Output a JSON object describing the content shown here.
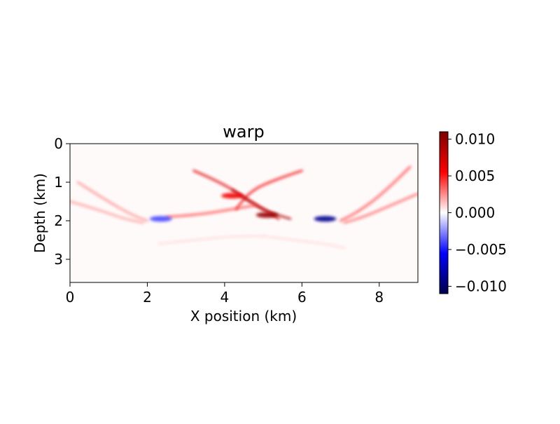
{
  "chart_data": {
    "type": "heatmap",
    "title": "warp",
    "xlabel": "X position (km)",
    "ylabel": "Depth (km)",
    "xlim": [
      0,
      9
    ],
    "ylim": [
      0,
      3.6
    ],
    "y_inverted": true,
    "x_ticks": [
      0,
      2,
      4,
      6,
      8
    ],
    "x_tick_labels": [
      "0",
      "2",
      "4",
      "6",
      "8"
    ],
    "y_ticks": [
      0,
      1,
      2,
      3
    ],
    "y_tick_labels": [
      "0",
      "1",
      "2",
      "3"
    ],
    "colormap": "seismic",
    "colormap_stops": [
      "#00004c",
      "#0000ff",
      "#ffffff",
      "#ff0000",
      "#7f0000"
    ],
    "value_range": [
      -0.011,
      0.011
    ],
    "colorbar_ticks": [
      0.01,
      0.005,
      0,
      -0.005,
      -0.01
    ],
    "colorbar_tick_labels": [
      "0.010",
      "0.005",
      "0.000",
      "−0.005",
      "−0.010"
    ],
    "grid": false,
    "features": [
      {
        "kind": "arc",
        "x": [
          0.2,
          0.9,
          1.6,
          2.0
        ],
        "y": [
          1.0,
          1.45,
          1.85,
          2.0
        ],
        "value": 0.0025
      },
      {
        "kind": "arc",
        "x": [
          0.0,
          0.7,
          1.4,
          1.9
        ],
        "y": [
          1.5,
          1.7,
          1.95,
          2.05
        ],
        "value": 0.0022
      },
      {
        "kind": "arc",
        "x": [
          8.8,
          8.1,
          7.4,
          7.0
        ],
        "y": [
          0.6,
          1.3,
          1.8,
          2.0
        ],
        "value": 0.004
      },
      {
        "kind": "arc",
        "x": [
          9.0,
          8.3,
          7.6,
          7.1
        ],
        "y": [
          1.3,
          1.6,
          1.9,
          2.05
        ],
        "value": 0.0035
      },
      {
        "kind": "arc",
        "x": [
          3.2,
          3.9,
          4.6,
          5.4
        ],
        "y": [
          0.7,
          1.0,
          1.45,
          1.95
        ],
        "value": 0.007
      },
      {
        "kind": "arc",
        "x": [
          6.0,
          5.1,
          4.6,
          4.3
        ],
        "y": [
          0.7,
          1.0,
          1.3,
          1.7
        ],
        "value": 0.006
      },
      {
        "kind": "arc",
        "x": [
          4.2,
          4.7,
          5.2,
          5.7
        ],
        "y": [
          1.2,
          1.55,
          1.8,
          1.95
        ],
        "value": 0.009
      },
      {
        "kind": "arc",
        "x": [
          2.5,
          3.3,
          4.2,
          4.8
        ],
        "y": [
          1.9,
          1.85,
          1.7,
          1.6
        ],
        "value": 0.004
      },
      {
        "kind": "arc",
        "x": [
          2.3,
          3.2,
          4.2,
          5.0
        ],
        "y": [
          2.6,
          2.5,
          2.4,
          2.4
        ],
        "value": 0.0008
      },
      {
        "kind": "arc",
        "x": [
          5.0,
          5.8,
          6.6,
          7.1
        ],
        "y": [
          2.4,
          2.5,
          2.6,
          2.7
        ],
        "value": 0.0008
      },
      {
        "kind": "blob",
        "x": 2.35,
        "y": 1.95,
        "value": -0.004
      },
      {
        "kind": "blob",
        "x": 6.6,
        "y": 1.95,
        "value": -0.009
      },
      {
        "kind": "blob",
        "x": 5.1,
        "y": 1.85,
        "value": 0.01
      },
      {
        "kind": "blob",
        "x": 4.2,
        "y": 1.35,
        "value": 0.006
      }
    ]
  }
}
